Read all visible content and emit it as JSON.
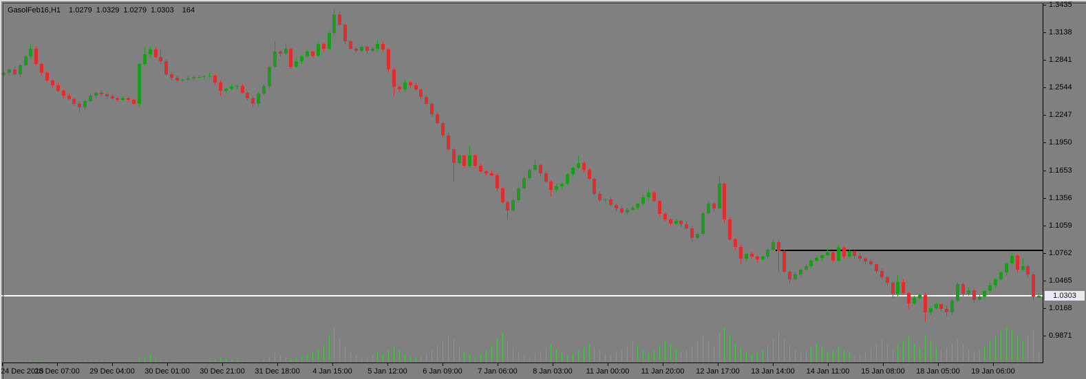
{
  "title": {
    "symbol_period": "GasolFeb16,H1",
    "open": "1.0279",
    "high": "1.0329",
    "low": "1.0279",
    "close": "1.0303",
    "tick_volume": "164"
  },
  "price_badge": "1.0303",
  "colors": {
    "background": "#808080",
    "bull": "#1e9b1e",
    "bear": "#dd2f2f",
    "volume": "#46c446",
    "axis": "#000000",
    "text": "#000000",
    "current_price_line": "#ffffff",
    "level_line": "#000000",
    "badge_bg": "#e9e9f0"
  },
  "chart_data": {
    "type": "candlestick",
    "title": "GasolFeb16,H1",
    "symbol": "GasolFeb16",
    "timeframe": "H1",
    "legend_position": "none",
    "grid": false,
    "last_bar": {
      "open": 1.0279,
      "high": 1.0329,
      "low": 1.0279,
      "close": 1.0303,
      "tick_volume": 164
    },
    "current_price": 1.0303,
    "horizontal_level": {
      "price": 1.0797,
      "starts_at_fraction": 0.744
    },
    "y_axis": {
      "labels": [
        1.3435,
        1.3138,
        1.2841,
        1.2544,
        1.2247,
        1.195,
        1.1653,
        1.1356,
        1.1059,
        1.0762,
        1.0465,
        1.0168,
        0.9871
      ],
      "step": 0.0297
    },
    "x_axis": {
      "labels": [
        "24 Dec 2015",
        "28 Dec 07:00",
        "29 Dec 04:00",
        "30 Dec 01:00",
        "30 Dec 21:00",
        "31 Dec 18:00",
        "4 Jan 15:00",
        "5 Jan 12:00",
        "6 Jan 09:00",
        "7 Jan 06:00",
        "8 Jan 03:00",
        "11 Jan 00:00",
        "11 Jan 20:00",
        "12 Jan 17:00",
        "13 Jan 14:00",
        "14 Jan 11:00",
        "15 Jan 08:00",
        "18 Jan 05:00",
        "19 Jan 06:00"
      ]
    },
    "candles": [
      [
        1.268,
        1.272,
        1.2666,
        1.27
      ],
      [
        1.27,
        1.2752,
        1.2674,
        1.274
      ],
      [
        1.274,
        1.2768,
        1.2672,
        1.269
      ],
      [
        1.269,
        1.2796,
        1.266,
        1.278
      ],
      [
        1.278,
        1.29,
        1.2766,
        1.288
      ],
      [
        1.288,
        1.301,
        1.2854,
        1.296
      ],
      [
        1.296,
        1.2988,
        1.2782,
        1.28
      ],
      [
        1.28,
        1.2816,
        1.267,
        1.27
      ],
      [
        1.27,
        1.272,
        1.2606,
        1.262
      ],
      [
        1.262,
        1.2632,
        1.2544,
        1.257
      ],
      [
        1.257,
        1.2598,
        1.2492,
        1.251
      ],
      [
        1.251,
        1.2526,
        1.243,
        1.246
      ],
      [
        1.246,
        1.248,
        1.2406,
        1.242
      ],
      [
        1.242,
        1.2432,
        1.2344,
        1.237
      ],
      [
        1.237,
        1.2398,
        1.228,
        1.233
      ],
      [
        1.233,
        1.2416,
        1.23,
        1.24
      ],
      [
        1.24,
        1.248,
        1.2386,
        1.246
      ],
      [
        1.246,
        1.2502,
        1.2434,
        1.249
      ],
      [
        1.249,
        1.2518,
        1.2452,
        1.247
      ],
      [
        1.247,
        1.2486,
        1.242,
        1.245
      ],
      [
        1.245,
        1.247,
        1.2416,
        1.243
      ],
      [
        1.243,
        1.2442,
        1.2389,
        1.2415
      ],
      [
        1.2415,
        1.2453,
        1.2397,
        1.2425
      ],
      [
        1.2425,
        1.2441,
        1.238,
        1.241
      ],
      [
        1.241,
        1.243,
        1.2351,
        1.2365
      ],
      [
        1.2365,
        1.2812,
        1.2339,
        1.28
      ],
      [
        1.28,
        1.2975,
        1.2782,
        1.29
      ],
      [
        1.29,
        1.2985,
        1.287,
        1.2955
      ],
      [
        1.2955,
        1.2975,
        1.2856,
        1.287
      ],
      [
        1.287,
        1.296,
        1.2799,
        1.2825
      ],
      [
        1.2825,
        1.2853,
        1.2672,
        1.269
      ],
      [
        1.269,
        1.2706,
        1.262,
        1.265
      ],
      [
        1.265,
        1.267,
        1.2606,
        1.262
      ],
      [
        1.262,
        1.2642,
        1.2594,
        1.263
      ],
      [
        1.263,
        1.2673,
        1.2612,
        1.2645
      ],
      [
        1.2645,
        1.2671,
        1.2615,
        1.2655
      ],
      [
        1.2655,
        1.268,
        1.2641,
        1.266
      ],
      [
        1.266,
        1.2677,
        1.2634,
        1.2665
      ],
      [
        1.2665,
        1.2698,
        1.2647,
        1.267
      ],
      [
        1.267,
        1.2686,
        1.257,
        1.26
      ],
      [
        1.26,
        1.262,
        1.246,
        1.251
      ],
      [
        1.251,
        1.2542,
        1.2484,
        1.253
      ],
      [
        1.253,
        1.2583,
        1.2512,
        1.2555
      ],
      [
        1.2555,
        1.2576,
        1.2525,
        1.256
      ],
      [
        1.256,
        1.258,
        1.2476,
        1.249
      ],
      [
        1.249,
        1.2502,
        1.2404,
        1.243
      ],
      [
        1.243,
        1.2458,
        1.233,
        1.2365
      ],
      [
        1.2365,
        1.2496,
        1.2335,
        1.248
      ],
      [
        1.248,
        1.258,
        1.2466,
        1.256
      ],
      [
        1.256,
        1.2782,
        1.2534,
        1.277
      ],
      [
        1.277,
        1.305,
        1.2752,
        1.293
      ],
      [
        1.293,
        1.2946,
        1.288,
        1.291
      ],
      [
        1.291,
        1.302,
        1.2896,
        1.296
      ],
      [
        1.296,
        1.2972,
        1.2744,
        1.277
      ],
      [
        1.277,
        1.2858,
        1.2752,
        1.283
      ],
      [
        1.283,
        1.2896,
        1.28,
        1.288
      ],
      [
        1.288,
        1.295,
        1.2866,
        1.293
      ],
      [
        1.293,
        1.2942,
        1.2864,
        1.289
      ],
      [
        1.289,
        1.3038,
        1.2872,
        1.301
      ],
      [
        1.301,
        1.3026,
        1.293,
        1.296
      ],
      [
        1.296,
        1.315,
        1.2946,
        1.313
      ],
      [
        1.313,
        1.3385,
        1.3104,
        1.333
      ],
      [
        1.333,
        1.336,
        1.3202,
        1.322
      ],
      [
        1.322,
        1.3236,
        1.301,
        1.304
      ],
      [
        1.304,
        1.306,
        1.2946,
        1.296
      ],
      [
        1.296,
        1.2972,
        1.2914,
        1.294
      ],
      [
        1.294,
        1.3008,
        1.2922,
        1.298
      ],
      [
        1.298,
        1.2996,
        1.291,
        1.294
      ],
      [
        1.294,
        1.298,
        1.2926,
        1.296
      ],
      [
        1.296,
        1.306,
        1.2934,
        1.301
      ],
      [
        1.301,
        1.3038,
        1.2932,
        1.295
      ],
      [
        1.295,
        1.2966,
        1.271,
        1.274
      ],
      [
        1.274,
        1.276,
        1.245,
        1.255
      ],
      [
        1.255,
        1.2562,
        1.2494,
        1.252
      ],
      [
        1.252,
        1.2628,
        1.2502,
        1.26
      ],
      [
        1.26,
        1.2616,
        1.254,
        1.257
      ],
      [
        1.257,
        1.259,
        1.2506,
        1.252
      ],
      [
        1.252,
        1.2532,
        1.2414,
        1.244
      ],
      [
        1.244,
        1.2468,
        1.2352,
        1.237
      ],
      [
        1.237,
        1.2386,
        1.223,
        1.226
      ],
      [
        1.226,
        1.228,
        1.2146,
        1.216
      ],
      [
        1.216,
        1.2172,
        1.2004,
        1.203
      ],
      [
        1.203,
        1.2058,
        1.1862,
        1.188
      ],
      [
        1.188,
        1.1896,
        1.153,
        1.173
      ],
      [
        1.173,
        1.183,
        1.1716,
        1.181
      ],
      [
        1.181,
        1.1822,
        1.1674,
        1.17
      ],
      [
        1.17,
        1.192,
        1.1682,
        1.181
      ],
      [
        1.181,
        1.1826,
        1.167,
        1.17
      ],
      [
        1.17,
        1.172,
        1.1626,
        1.164
      ],
      [
        1.164,
        1.1652,
        1.1594,
        1.162
      ],
      [
        1.162,
        1.1648,
        1.1582,
        1.16
      ],
      [
        1.16,
        1.1616,
        1.143,
        1.146
      ],
      [
        1.146,
        1.148,
        1.1296,
        1.131
      ],
      [
        1.131,
        1.1322,
        1.112,
        1.122
      ],
      [
        1.122,
        1.1358,
        1.1202,
        1.133
      ],
      [
        1.133,
        1.1476,
        1.13,
        1.146
      ],
      [
        1.146,
        1.159,
        1.1446,
        1.157
      ],
      [
        1.157,
        1.1672,
        1.1544,
        1.166
      ],
      [
        1.166,
        1.177,
        1.1642,
        1.171
      ],
      [
        1.171,
        1.1726,
        1.159,
        1.162
      ],
      [
        1.162,
        1.164,
        1.1516,
        1.153
      ],
      [
        1.153,
        1.1542,
        1.137,
        1.144
      ],
      [
        1.144,
        1.1508,
        1.1422,
        1.148
      ],
      [
        1.148,
        1.1526,
        1.145,
        1.151
      ],
      [
        1.151,
        1.163,
        1.1496,
        1.161
      ],
      [
        1.161,
        1.1692,
        1.1584,
        1.168
      ],
      [
        1.168,
        1.181,
        1.1662,
        1.173
      ],
      [
        1.173,
        1.1746,
        1.163,
        1.166
      ],
      [
        1.166,
        1.168,
        1.1546,
        1.156
      ],
      [
        1.156,
        1.1572,
        1.1374,
        1.14
      ],
      [
        1.14,
        1.1428,
        1.1312,
        1.133
      ],
      [
        1.133,
        1.1356,
        1.13,
        1.134
      ],
      [
        1.134,
        1.136,
        1.1266,
        1.128
      ],
      [
        1.128,
        1.1292,
        1.1214,
        1.124
      ],
      [
        1.124,
        1.1268,
        1.1182,
        1.12
      ],
      [
        1.12,
        1.1246,
        1.117,
        1.123
      ],
      [
        1.123,
        1.127,
        1.1216,
        1.125
      ],
      [
        1.125,
        1.1302,
        1.1224,
        1.129
      ],
      [
        1.129,
        1.1388,
        1.1272,
        1.136
      ],
      [
        1.136,
        1.145,
        1.133,
        1.141
      ],
      [
        1.141,
        1.143,
        1.1306,
        1.132
      ],
      [
        1.132,
        1.1332,
        1.1154,
        1.118
      ],
      [
        1.118,
        1.1208,
        1.1102,
        1.112
      ],
      [
        1.112,
        1.1136,
        1.105,
        1.108
      ],
      [
        1.108,
        1.113,
        1.1066,
        1.111
      ],
      [
        1.111,
        1.1122,
        1.1044,
        1.107
      ],
      [
        1.107,
        1.1098,
        1.1012,
        1.103
      ],
      [
        1.103,
        1.1046,
        1.088,
        1.092
      ],
      [
        1.092,
        1.099,
        1.0906,
        1.097
      ],
      [
        1.097,
        1.1202,
        1.0944,
        1.119
      ],
      [
        1.119,
        1.1318,
        1.1172,
        1.129
      ],
      [
        1.129,
        1.1306,
        1.121,
        1.124
      ],
      [
        1.124,
        1.16,
        1.1226,
        1.151
      ],
      [
        1.151,
        1.1522,
        1.108,
        1.112
      ],
      [
        1.112,
        1.1148,
        1.0892,
        1.091
      ],
      [
        1.091,
        1.0926,
        1.08,
        1.083
      ],
      [
        1.083,
        1.085,
        1.064,
        1.07
      ],
      [
        1.07,
        1.0762,
        1.0674,
        1.075
      ],
      [
        1.075,
        1.0778,
        1.0702,
        1.072
      ],
      [
        1.072,
        1.0736,
        1.066,
        1.069
      ],
      [
        1.069,
        1.074,
        1.0676,
        1.072
      ],
      [
        1.072,
        1.0812,
        1.0694,
        1.08
      ],
      [
        1.08,
        1.0908,
        1.0782,
        1.088
      ],
      [
        1.088,
        1.09,
        1.056,
        1.078
      ],
      [
        1.078,
        1.08,
        1.0546,
        1.056
      ],
      [
        1.056,
        1.0572,
        1.043,
        1.048
      ],
      [
        1.048,
        1.0558,
        1.0462,
        1.053
      ],
      [
        1.053,
        1.0596,
        1.05,
        1.058
      ],
      [
        1.058,
        1.064,
        1.0566,
        1.062
      ],
      [
        1.062,
        1.0692,
        1.0594,
        1.068
      ],
      [
        1.068,
        1.0738,
        1.0662,
        1.071
      ],
      [
        1.071,
        1.0756,
        1.068,
        1.074
      ],
      [
        1.074,
        1.083,
        1.0726,
        1.077
      ],
      [
        1.077,
        1.0782,
        1.0654,
        1.068
      ],
      [
        1.068,
        1.0848,
        1.0662,
        1.082
      ],
      [
        1.082,
        1.0836,
        1.069,
        1.072
      ],
      [
        1.072,
        1.08,
        1.0706,
        1.078
      ],
      [
        1.078,
        1.0792,
        1.0704,
        1.073
      ],
      [
        1.073,
        1.0758,
        1.0682,
        1.07
      ],
      [
        1.07,
        1.0716,
        1.064,
        1.067
      ],
      [
        1.067,
        1.069,
        1.0626,
        1.064
      ],
      [
        1.064,
        1.0652,
        1.0544,
        1.057
      ],
      [
        1.057,
        1.0598,
        1.0482,
        1.05
      ],
      [
        1.05,
        1.0516,
        1.041,
        1.044
      ],
      [
        1.044,
        1.046,
        1.027,
        1.032
      ],
      [
        1.032,
        1.052,
        1.0294,
        1.045
      ],
      [
        1.045,
        1.0478,
        1.0312,
        1.033
      ],
      [
        1.033,
        1.0346,
        1.016,
        1.022
      ],
      [
        1.022,
        1.03,
        1.0206,
        1.028
      ],
      [
        1.028,
        1.0322,
        1.0254,
        1.031
      ],
      [
        1.031,
        1.0338,
        1.002,
        1.012
      ],
      [
        1.012,
        1.0186,
        1.009,
        1.017
      ],
      [
        1.017,
        1.023,
        1.0156,
        1.021
      ],
      [
        1.021,
        1.0222,
        1.0134,
        1.016
      ],
      [
        1.016,
        1.0188,
        1.008,
        1.012
      ],
      [
        1.012,
        1.0266,
        1.009,
        1.025
      ],
      [
        1.025,
        1.045,
        1.0236,
        1.043
      ],
      [
        1.043,
        1.0442,
        1.0294,
        1.032
      ],
      [
        1.032,
        1.0388,
        1.0302,
        1.036
      ],
      [
        1.036,
        1.0376,
        1.023,
        1.026
      ],
      [
        1.026,
        1.031,
        1.0246,
        1.029
      ],
      [
        1.029,
        1.0362,
        1.0264,
        1.035
      ],
      [
        1.035,
        1.0438,
        1.0332,
        1.041
      ],
      [
        1.041,
        1.0496,
        1.038,
        1.048
      ],
      [
        1.048,
        1.057,
        1.0466,
        1.055
      ],
      [
        1.055,
        1.0662,
        1.0524,
        1.065
      ],
      [
        1.065,
        1.077,
        1.0632,
        1.073
      ],
      [
        1.073,
        1.0746,
        1.055,
        1.058
      ],
      [
        1.058,
        1.071,
        1.0566,
        1.062
      ],
      [
        1.062,
        1.0632,
        1.0504,
        1.053
      ],
      [
        1.053,
        1.0558,
        1.025,
        1.029
      ],
      [
        1.0279,
        1.0329,
        1.0279,
        1.0303
      ]
    ],
    "volumes": [
      8,
      10,
      14,
      22,
      30,
      38,
      26,
      18,
      12,
      9,
      7,
      6,
      8,
      12,
      20,
      34,
      46,
      40,
      28,
      18,
      12,
      9,
      7,
      6,
      10,
      60,
      90,
      120,
      80,
      55,
      38,
      26,
      16,
      10,
      8,
      6,
      8,
      12,
      22,
      40,
      60,
      48,
      34,
      22,
      14,
      10,
      8,
      12,
      30,
      80,
      140,
      110,
      70,
      50,
      60,
      90,
      120,
      150,
      200,
      260,
      420,
      560,
      380,
      240,
      160,
      110,
      90,
      70,
      110,
      150,
      120,
      180,
      240,
      180,
      120,
      90,
      70,
      90,
      130,
      180,
      260,
      340,
      420,
      360,
      240,
      160,
      110,
      90,
      120,
      180,
      260,
      380,
      460,
      340,
      220,
      150,
      110,
      90,
      130,
      170,
      220,
      280,
      200,
      140,
      100,
      130,
      180,
      240,
      300,
      240,
      180,
      130,
      100,
      140,
      190,
      250,
      320,
      260,
      190,
      130,
      180,
      260,
      340,
      280,
      200,
      150,
      190,
      260,
      350,
      420,
      330,
      240,
      460,
      560,
      420,
      300,
      220,
      160,
      120,
      140,
      190,
      260,
      380,
      480,
      360,
      260,
      190,
      140,
      170,
      220,
      280,
      220,
      160,
      190,
      240,
      180,
      130,
      100,
      120,
      160,
      220,
      290,
      360,
      280,
      200,
      260,
      330,
      400,
      300,
      220,
      420,
      320,
      240,
      180,
      220,
      280,
      360,
      280,
      200,
      150,
      190,
      250,
      320,
      400,
      480,
      560,
      500,
      420,
      340,
      420,
      520,
      164
    ]
  }
}
